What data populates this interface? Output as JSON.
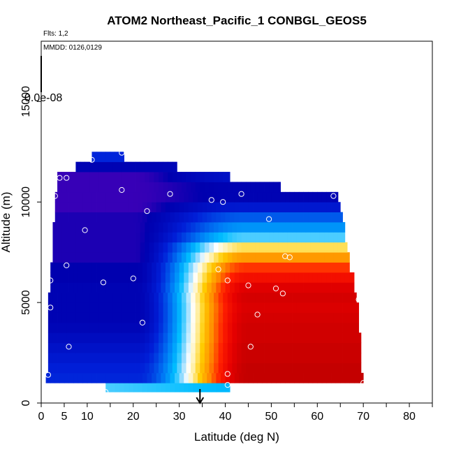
{
  "chart_data": {
    "type": "heatmap",
    "title": "ATOM2 Northeast_Pacific_1 CONBGL_GEOS5",
    "annotations": {
      "flights": "Flts: 1,2",
      "dates": "MMDD: 0126,0129",
      "colorbar_value": "0.0e-08"
    },
    "xlabel": "Latitude (deg N)",
    "ylabel": "Altitude (m)",
    "xlim": [
      0,
      85
    ],
    "ylim": [
      0,
      18000
    ],
    "x_ticks": [
      0,
      5,
      10,
      20,
      30,
      40,
      50,
      60,
      70,
      80
    ],
    "x_tick_labels": [
      "0",
      "5",
      "10",
      "20",
      "30",
      "40",
      "50",
      "60",
      "70",
      "80"
    ],
    "x_minor_ticks": [
      15,
      25,
      35,
      45,
      55,
      65,
      75,
      85
    ],
    "y_ticks": [
      0,
      5000,
      10000,
      15000
    ],
    "y_tick_labels": [
      "0",
      "5000",
      "10000",
      "15000"
    ],
    "arrow_latitude": 34.5,
    "bands": [
      {
        "alt": 800,
        "x0": 14,
        "x1": 41,
        "v0": 0.4,
        "v1": 0.35
      },
      {
        "alt": 1250,
        "x0": 1,
        "x1": 70,
        "v0": 0.15,
        "v1": 0.98
      },
      {
        "alt": 1750,
        "x0": 1.5,
        "x1": 69.5,
        "v0": 0.14,
        "v1": 0.98
      },
      {
        "alt": 2250,
        "x0": 1.5,
        "x1": 69.5,
        "v0": 0.12,
        "v1": 0.97
      },
      {
        "alt": 2750,
        "x0": 1.5,
        "x1": 69.5,
        "v0": 0.1,
        "v1": 0.97
      },
      {
        "alt": 3250,
        "x0": 1.5,
        "x1": 69.5,
        "v0": 0.08,
        "v1": 0.96
      },
      {
        "alt": 3750,
        "x0": 1.5,
        "x1": 69,
        "v0": 0.06,
        "v1": 0.96
      },
      {
        "alt": 4250,
        "x0": 1.5,
        "x1": 69,
        "v0": 0.05,
        "v1": 0.95
      },
      {
        "alt": 4750,
        "x0": 1.5,
        "x1": 69,
        "v0": 0.05,
        "v1": 0.94
      },
      {
        "alt": 5250,
        "x0": 1.5,
        "x1": 68.5,
        "v0": 0.05,
        "v1": 0.95
      },
      {
        "alt": 5750,
        "x0": 2,
        "x1": 68,
        "v0": 0.05,
        "v1": 0.93
      },
      {
        "alt": 6250,
        "x0": 2,
        "x1": 68,
        "v0": 0.04,
        "v1": 0.88
      },
      {
        "alt": 6750,
        "x0": 2,
        "x1": 67,
        "v0": 0.04,
        "v1": 0.82
      },
      {
        "alt": 7250,
        "x0": 2.5,
        "x1": 67,
        "v0": 0.03,
        "v1": 0.72
      },
      {
        "alt": 7750,
        "x0": 2.5,
        "x1": 66.5,
        "v0": 0.03,
        "v1": 0.6
      },
      {
        "alt": 8250,
        "x0": 2.5,
        "x1": 66,
        "v0": 0.03,
        "v1": 0.4
      },
      {
        "alt": 8750,
        "x0": 2.5,
        "x1": 66,
        "v0": 0.03,
        "v1": 0.3
      },
      {
        "alt": 9250,
        "x0": 3,
        "x1": 65.5,
        "v0": 0.03,
        "v1": 0.22
      },
      {
        "alt": 9750,
        "x0": 3,
        "x1": 65,
        "v0": 0.02,
        "v1": 0.12
      },
      {
        "alt": 10250,
        "x0": 3,
        "x1": 64.5,
        "v0": 0.02,
        "v1": 0.05
      },
      {
        "alt": 10750,
        "x0": 3.5,
        "x1": 52,
        "v0": 0.02,
        "v1": 0.05
      },
      {
        "alt": 11250,
        "x0": 3.5,
        "x1": 41,
        "v0": 0.02,
        "v1": 0.1
      },
      {
        "alt": 11750,
        "x0": 7.5,
        "x1": 29.5,
        "v0": 0.05,
        "v1": 0.08
      },
      {
        "alt": 12250,
        "x0": 11,
        "x1": 18,
        "v0": 0.15,
        "v1": 0.15
      }
    ],
    "points": [
      [
        14,
        550
      ],
      [
        40.5,
        900
      ],
      [
        1.5,
        1400
      ],
      [
        40.5,
        1450
      ],
      [
        70,
        1000
      ],
      [
        6,
        2800
      ],
      [
        45.5,
        2800
      ],
      [
        22,
        4000
      ],
      [
        47,
        4400
      ],
      [
        2,
        4750
      ],
      [
        52.5,
        5450
      ],
      [
        51,
        5700
      ],
      [
        69,
        5150
      ],
      [
        2,
        6100
      ],
      [
        13.5,
        6000
      ],
      [
        20,
        6200
      ],
      [
        40.5,
        6100
      ],
      [
        45,
        5850
      ],
      [
        38.5,
        6650
      ],
      [
        5.5,
        6850
      ],
      [
        53,
        7300
      ],
      [
        54,
        7250
      ],
      [
        9.5,
        8600
      ],
      [
        49.5,
        9150
      ],
      [
        23,
        9550
      ],
      [
        39.5,
        10000
      ],
      [
        37,
        10100
      ],
      [
        3,
        10300
      ],
      [
        28,
        10400
      ],
      [
        43.5,
        10400
      ],
      [
        63.5,
        10300
      ],
      [
        17.5,
        10600
      ],
      [
        4,
        11200
      ],
      [
        5.5,
        11200
      ],
      [
        11,
        12100
      ],
      [
        17.5,
        12450
      ]
    ]
  }
}
